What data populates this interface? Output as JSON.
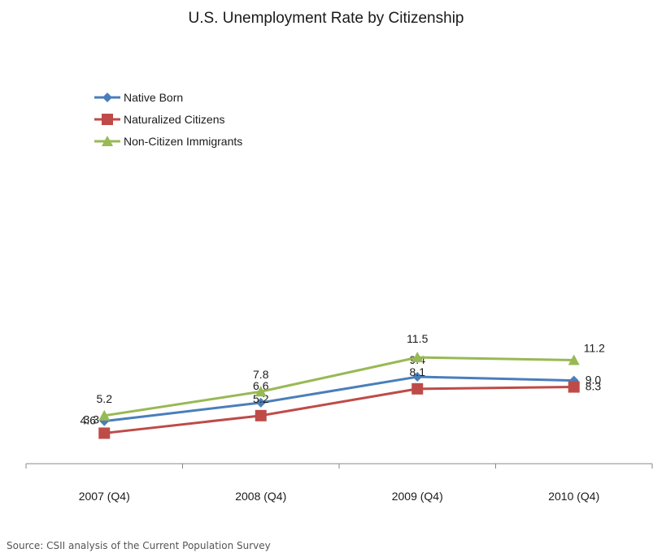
{
  "chart_data": {
    "type": "line",
    "title": "U.S. Unemployment Rate by Citizenship",
    "categories": [
      "2007 (Q4)",
      "2008 (Q4)",
      "2009 (Q4)",
      "2010 (Q4)"
    ],
    "series": [
      {
        "name": "Native Born",
        "values": [
          4.6,
          6.6,
          9.4,
          9.0
        ],
        "labels": [
          "4.6",
          "6.6",
          "9.4",
          "9.0"
        ],
        "color": "#4a7ebb",
        "marker": "diamond"
      },
      {
        "name": "Naturalized Citizens",
        "values": [
          3.3,
          5.2,
          8.1,
          8.3
        ],
        "labels": [
          "3.3",
          "5.2",
          "8.1",
          "8.3"
        ],
        "color": "#be4b48",
        "marker": "square"
      },
      {
        "name": "Non-Citizen Immigrants",
        "values": [
          5.2,
          7.8,
          11.5,
          11.2
        ],
        "labels": [
          "5.2",
          "7.8",
          "11.5",
          "11.2"
        ],
        "color": "#98b954",
        "marker": "triangle"
      }
    ],
    "ylim": [
      0,
      14
    ],
    "grid": false,
    "legend_position": "top-left"
  },
  "source": "Source: CSII analysis of the Current Population Survey"
}
